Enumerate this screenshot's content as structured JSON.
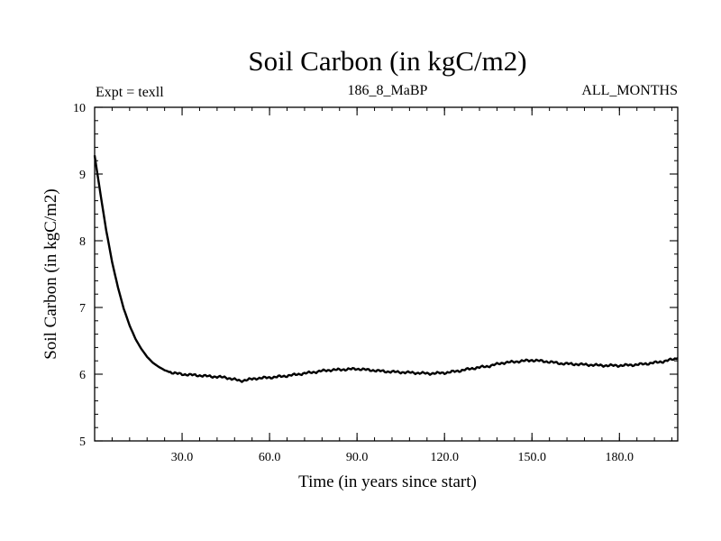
{
  "chart_data": {
    "type": "line",
    "title": "Soil Carbon (in kgC/m2)",
    "left_label": "Expt = texll",
    "center_label": "186_8_MaBP",
    "right_label": "ALL_MONTHS",
    "xlabel": "Time (in years since start)",
    "ylabel": "Soil Carbon (in kgC/m2)",
    "xlim": [
      0,
      200
    ],
    "ylim": [
      5,
      10
    ],
    "xticks": [
      30,
      60,
      90,
      120,
      150,
      180
    ],
    "xtick_labels": [
      "30.0",
      "60.0",
      "90.0",
      "120.0",
      "150.0",
      "180.0"
    ],
    "yticks": [
      5,
      6,
      7,
      8,
      9,
      10
    ],
    "ytick_labels": [
      "5",
      "6",
      "7",
      "8",
      "9",
      "10"
    ],
    "series": [
      {
        "name": "Soil Carbon",
        "color": "#000000",
        "x": [
          0,
          2,
          4,
          6,
          8,
          10,
          12,
          14,
          16,
          18,
          20,
          22,
          24,
          26,
          28,
          30,
          33,
          36,
          39,
          42,
          45,
          48,
          50,
          53,
          56,
          60,
          65,
          70,
          75,
          80,
          85,
          90,
          95,
          100,
          105,
          110,
          115,
          120,
          125,
          130,
          135,
          140,
          145,
          150,
          155,
          160,
          165,
          170,
          175,
          180,
          185,
          190,
          195,
          200
        ],
        "y": [
          9.28,
          8.7,
          8.15,
          7.68,
          7.3,
          6.98,
          6.73,
          6.53,
          6.38,
          6.26,
          6.17,
          6.11,
          6.06,
          6.03,
          6.01,
          6.0,
          5.99,
          5.98,
          5.97,
          5.96,
          5.95,
          5.92,
          5.9,
          5.92,
          5.94,
          5.95,
          5.97,
          6.0,
          6.03,
          6.06,
          6.07,
          6.08,
          6.06,
          6.04,
          6.03,
          6.02,
          6.01,
          6.02,
          6.05,
          6.09,
          6.12,
          6.17,
          6.19,
          6.21,
          6.19,
          6.16,
          6.15,
          6.14,
          6.13,
          6.13,
          6.14,
          6.16,
          6.19,
          6.24
        ]
      }
    ]
  }
}
